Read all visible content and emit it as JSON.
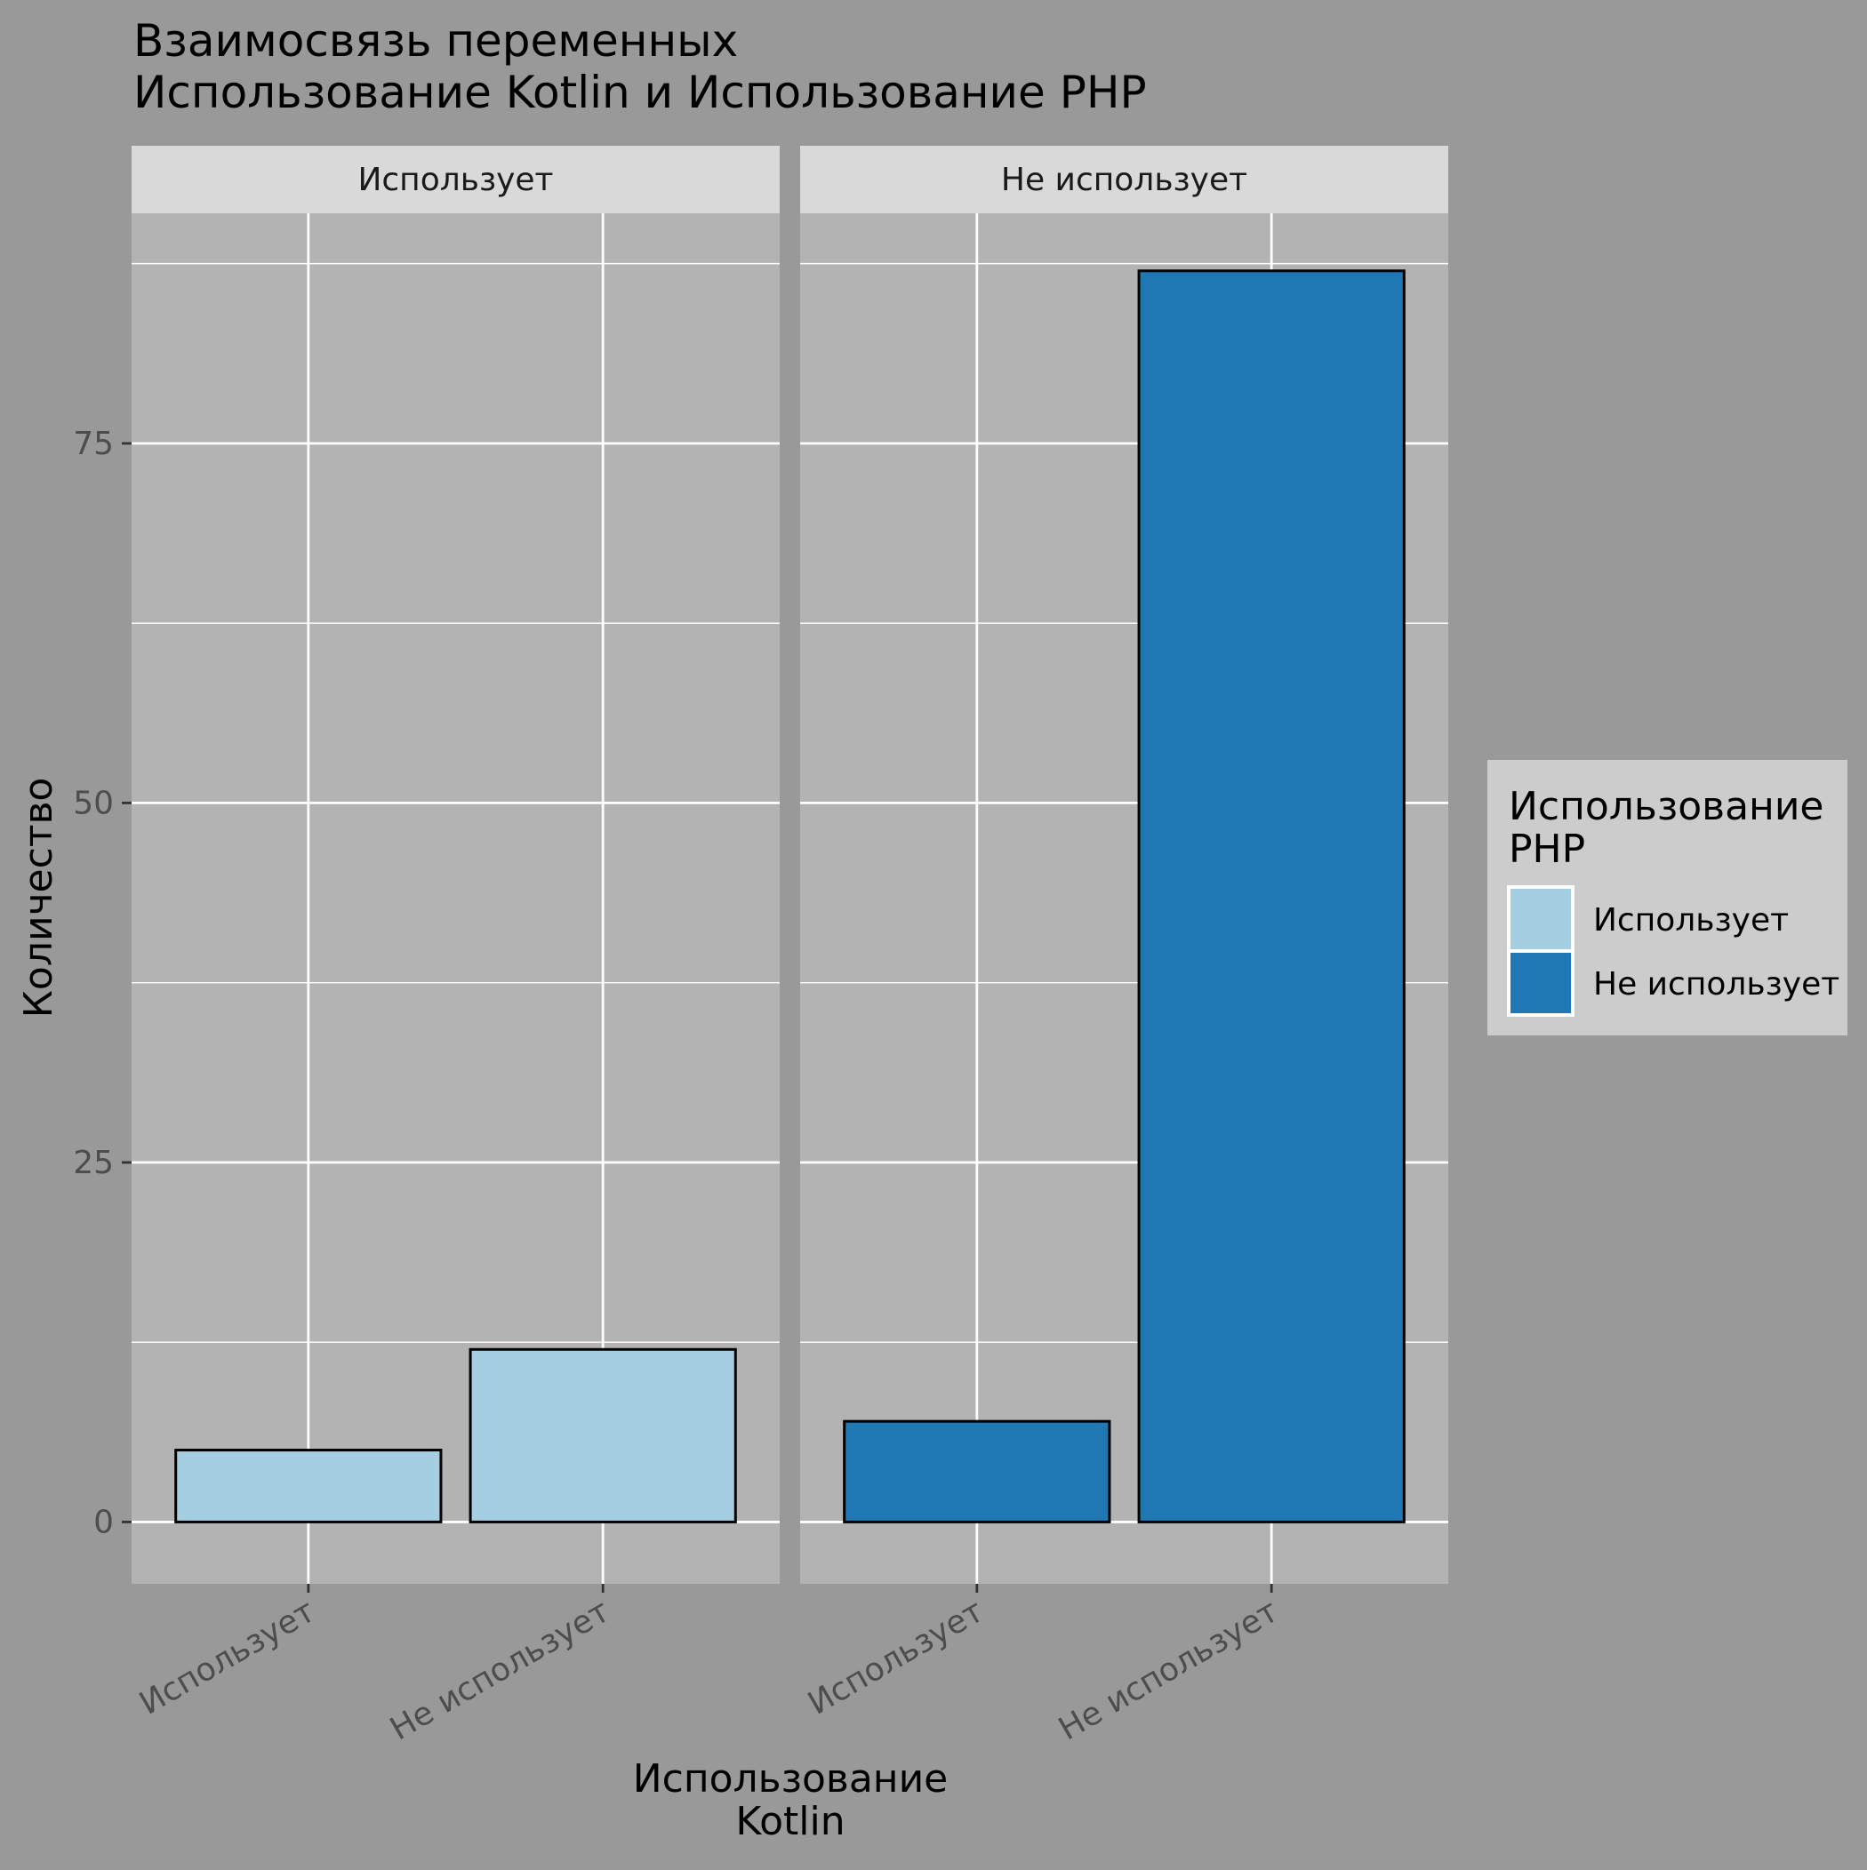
{
  "chart_data": {
    "type": "bar",
    "title_lines": [
      "Взаимосвязь переменных",
      " Использование Kotlin и Использование PHP"
    ],
    "xlabel_lines": [
      "Использование",
      "Kotlin"
    ],
    "ylabel": "Количество",
    "ylim": [
      -4.3,
      91
    ],
    "yticks": [
      0,
      25,
      50,
      75
    ],
    "categories": [
      "Использует",
      "Не использует"
    ],
    "panels": [
      {
        "label": "Использует",
        "fill_series": "Использует",
        "values": [
          5,
          12
        ]
      },
      {
        "label": "Не использует",
        "fill_series": "Не использует",
        "values": [
          7,
          87
        ]
      }
    ],
    "legend": {
      "title_lines": [
        "Использование",
        "PHP"
      ],
      "position": "right",
      "items": [
        {
          "label": "Использует",
          "color": "#A6CEE3"
        },
        {
          "label": "Не использует",
          "color": "#1F78B4"
        }
      ]
    },
    "colors": {
      "page_background": "#999999",
      "panel_background": "#B3B3B3",
      "strip_background": "#D9D9D9",
      "legend_background": "#CCCCCC",
      "grid": "#FFFFFF",
      "bar_outline": "#000000"
    },
    "grid": true
  }
}
